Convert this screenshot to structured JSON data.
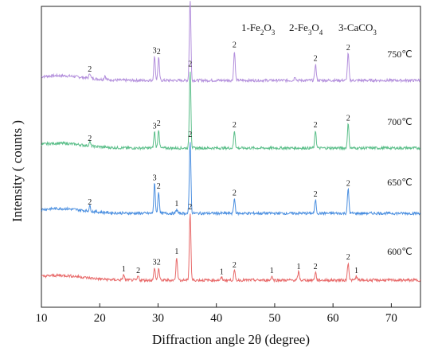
{
  "chart_data": {
    "type": "line",
    "xlabel": "Diffraction angle 2θ (degree)",
    "ylabel": "Intensity ( counts )",
    "xlim": [
      10,
      75
    ],
    "xticks": [
      10,
      20,
      30,
      40,
      50,
      60,
      70
    ],
    "legend": [
      {
        "id": "1",
        "label": "1-Fe",
        "sub": "2",
        "mid": "O",
        "sub2": "3"
      },
      {
        "id": "2",
        "label": "2-Fe",
        "sub": "3",
        "mid": "O",
        "sub2": "4"
      },
      {
        "id": "3",
        "label": "3-CaCO",
        "sub": "3",
        "mid": "",
        "sub2": ""
      }
    ],
    "series": [
      {
        "name": "750℃",
        "color": "#b38fdc",
        "baseline": 0.0,
        "peaks": [
          {
            "x": 18.3,
            "h": 0.04,
            "label": "2"
          },
          {
            "x": 20.9,
            "h": 0.03,
            "label": ""
          },
          {
            "x": 29.4,
            "h": 0.18,
            "label": "3"
          },
          {
            "x": 30.1,
            "h": 0.17,
            "label": "2"
          },
          {
            "x": 35.5,
            "h": 0.6,
            "label": "2"
          },
          {
            "x": 43.1,
            "h": 0.22,
            "label": "2"
          },
          {
            "x": 53.5,
            "h": 0.03,
            "label": ""
          },
          {
            "x": 57.0,
            "h": 0.12,
            "label": "2"
          },
          {
            "x": 62.6,
            "h": 0.2,
            "label": "2"
          }
        ]
      },
      {
        "name": "700℃",
        "color": "#5cbf8a",
        "baseline": 0.0,
        "peaks": [
          {
            "x": 18.3,
            "h": 0.03,
            "label": "2"
          },
          {
            "x": 29.4,
            "h": 0.12,
            "label": "3"
          },
          {
            "x": 30.1,
            "h": 0.14,
            "label": "2"
          },
          {
            "x": 35.5,
            "h": 0.58,
            "label": "2"
          },
          {
            "x": 43.1,
            "h": 0.13,
            "label": "2"
          },
          {
            "x": 57.0,
            "h": 0.13,
            "label": "2"
          },
          {
            "x": 62.6,
            "h": 0.18,
            "label": "2"
          }
        ]
      },
      {
        "name": "650℃",
        "color": "#4b8fe0",
        "baseline": 0.0,
        "peaks": [
          {
            "x": 18.3,
            "h": 0.04,
            "label": "2"
          },
          {
            "x": 29.4,
            "h": 0.22,
            "label": "3"
          },
          {
            "x": 30.1,
            "h": 0.16,
            "label": "2"
          },
          {
            "x": 33.2,
            "h": 0.03,
            "label": "1"
          },
          {
            "x": 35.5,
            "h": 0.54,
            "label": "2"
          },
          {
            "x": 43.1,
            "h": 0.11,
            "label": "2"
          },
          {
            "x": 57.0,
            "h": 0.1,
            "label": "2"
          },
          {
            "x": 62.6,
            "h": 0.18,
            "label": "2"
          }
        ]
      },
      {
        "name": "600℃",
        "color": "#e86a6a",
        "baseline": 0.0,
        "peaks": [
          {
            "x": 24.1,
            "h": 0.04,
            "label": "1"
          },
          {
            "x": 26.6,
            "h": 0.03,
            "label": "2"
          },
          {
            "x": 29.4,
            "h": 0.09,
            "label": "3"
          },
          {
            "x": 30.1,
            "h": 0.09,
            "label": "2"
          },
          {
            "x": 33.2,
            "h": 0.17,
            "label": "1"
          },
          {
            "x": 35.5,
            "h": 0.5,
            "label": "2"
          },
          {
            "x": 40.9,
            "h": 0.02,
            "label": "1"
          },
          {
            "x": 43.1,
            "h": 0.07,
            "label": "2"
          },
          {
            "x": 49.5,
            "h": 0.03,
            "label": "1"
          },
          {
            "x": 54.1,
            "h": 0.06,
            "label": "1"
          },
          {
            "x": 57.0,
            "h": 0.06,
            "label": "2"
          },
          {
            "x": 62.6,
            "h": 0.13,
            "label": "2"
          },
          {
            "x": 64.0,
            "h": 0.03,
            "label": "1"
          }
        ]
      }
    ]
  }
}
